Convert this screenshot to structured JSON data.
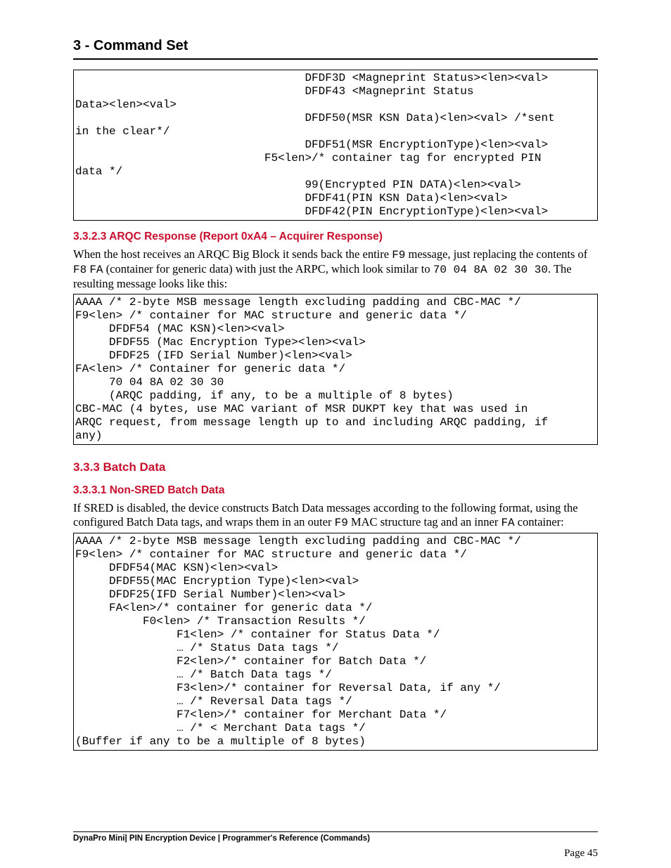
{
  "header": {
    "title": "3 - Command Set"
  },
  "codebox1": {
    "text": "                                  DFDF3D <Magneprint Status><len><val>\n                                  DFDF43 <Magneprint Status\nData><len><val>\n                                  DFDF50(MSR KSN Data)<len><val> /*sent\nin the clear*/\n                                  DFDF51(MSR EncryptionType)<len><val>\n                            F5<len>/* container tag for encrypted PIN\ndata */\n                                  99(Encrypted PIN DATA)<len><val>\n                                  DFDF41(PIN KSN Data)<len><val>\n                                  DFDF42(PIN EncryptionType)<len><val>"
  },
  "section_arqc": {
    "heading": "3.3.2.3 ARQC Response (Report 0xA4 – Acquirer Response)",
    "para_before": "When the host receives an ARQC Big Block it sends back the entire ",
    "f9": "F9",
    "para_mid": " message, just replacing the contents of ",
    "f8": "F8",
    "fa": "FA",
    "para_mid2": " (container for generic data) with just the ARPC, which look similar to ",
    "arpc": "70 04 8A 02 30 30",
    "para_end": ". The resulting message looks like this:"
  },
  "codebox2": {
    "text": "AAAA /* 2-byte MSB message length excluding padding and CBC-MAC */\nF9<len> /* container for MAC structure and generic data */\n     DFDF54 (MAC KSN)<len><val>\n     DFDF55 (Mac Encryption Type><len><val>\n     DFDF25 (IFD Serial Number)<len><val>\nFA<len> /* Container for generic data */\n     70 04 8A 02 30 30\n     (ARQC padding, if any, to be a multiple of 8 bytes)\nCBC-MAC (4 bytes, use MAC variant of MSR DUKPT key that was used in\nARQC request, from message length up to and including ARQC padding, if\nany)"
  },
  "section_batch": {
    "heading": "3.3.3  Batch Data",
    "subheading": "3.3.3.1 Non-SRED Batch Data",
    "para_before": "If SRED is disabled, the device constructs Batch Data messages according to the following format, using the configured Batch Data tags, and wraps them in an outer ",
    "f9": "F9",
    "para_mid": " MAC structure tag and an inner ",
    "fa": "FA",
    "para_end": " container:"
  },
  "codebox3": {
    "text": "AAAA /* 2-byte MSB message length excluding padding and CBC-MAC */\nF9<len> /* container for MAC structure and generic data */\n     DFDF54(MAC KSN)<len><val>\n     DFDF55(MAC Encryption Type)<len><val>\n     DFDF25(IFD Serial Number)<len><val>\n     FA<len>/* container for generic data */\n          F0<len> /* Transaction Results */\n               F1<len> /* container for Status Data */\n               … /* Status Data tags */\n               F2<len>/* container for Batch Data */\n               … /* Batch Data tags */\n               F3<len>/* container for Reversal Data, if any */\n               … /* Reversal Data tags */\n               F7<len>/* container for Merchant Data */\n               … /* < Merchant Data tags */\n(Buffer if any to be a multiple of 8 bytes)"
  },
  "footer": {
    "text": "DynaPro Mini| PIN Encryption Device | Programmer's Reference (Commands)",
    "page": "Page 45"
  },
  "colors": {
    "heading_red": "#c8102e",
    "text": "#000000",
    "background": "#ffffff"
  },
  "fonts": {
    "body": "Times New Roman",
    "mono": "Courier New",
    "sans": "Arial",
    "heading_size_pt": 15.5,
    "body_size_pt": 16.5,
    "mono_size_pt": 16
  }
}
